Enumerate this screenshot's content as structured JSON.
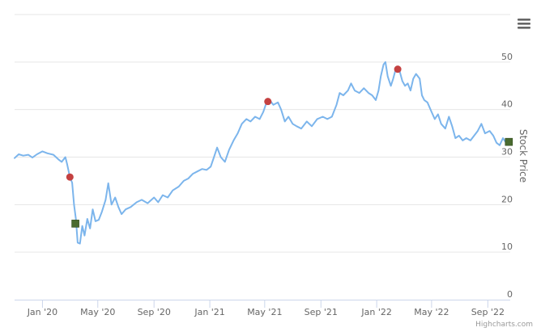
{
  "chart_data": {
    "type": "line",
    "ylabel": "Stock Price",
    "ylim": [
      0,
      60
    ],
    "yticks": [
      0,
      10,
      20,
      30,
      40,
      50
    ],
    "xlim": [
      "2019-11-01",
      "2022-10-20"
    ],
    "xticks": [
      {
        "date": "2020-01-01",
        "label": "Jan '20"
      },
      {
        "date": "2020-05-01",
        "label": "May '20"
      },
      {
        "date": "2020-09-01",
        "label": "Sep '20"
      },
      {
        "date": "2021-01-01",
        "label": "Jan '21"
      },
      {
        "date": "2021-05-01",
        "label": "May '21"
      },
      {
        "date": "2021-09-01",
        "label": "Sep '21"
      },
      {
        "date": "2022-01-01",
        "label": "Jan '22"
      },
      {
        "date": "2022-05-01",
        "label": "May '22"
      },
      {
        "date": "2022-09-01",
        "label": "Sep '22"
      }
    ],
    "grid": true,
    "series": [
      {
        "color": "#7cb5ec",
        "points": [
          [
            "2019-11-01",
            29.8
          ],
          [
            "2019-11-10",
            30.6
          ],
          [
            "2019-11-20",
            30.3
          ],
          [
            "2019-12-01",
            30.5
          ],
          [
            "2019-12-10",
            29.9
          ],
          [
            "2019-12-20",
            30.6
          ],
          [
            "2020-01-01",
            31.2
          ],
          [
            "2020-01-12",
            30.8
          ],
          [
            "2020-01-25",
            30.5
          ],
          [
            "2020-02-05",
            29.5
          ],
          [
            "2020-02-12",
            29.0
          ],
          [
            "2020-02-20",
            30.0
          ],
          [
            "2020-02-24",
            28.5
          ],
          [
            "2020-03-01",
            25.8
          ],
          [
            "2020-03-06",
            24.6
          ],
          [
            "2020-03-10",
            20.0
          ],
          [
            "2020-03-14",
            17.0
          ],
          [
            "2020-03-18",
            12.0
          ],
          [
            "2020-03-23",
            11.8
          ],
          [
            "2020-03-28",
            15.5
          ],
          [
            "2020-04-02",
            13.5
          ],
          [
            "2020-04-08",
            17.0
          ],
          [
            "2020-04-14",
            15.0
          ],
          [
            "2020-04-20",
            19.0
          ],
          [
            "2020-04-26",
            16.5
          ],
          [
            "2020-05-03",
            16.8
          ],
          [
            "2020-05-10",
            18.5
          ],
          [
            "2020-05-18",
            21.0
          ],
          [
            "2020-05-24",
            24.5
          ],
          [
            "2020-05-31",
            20.0
          ],
          [
            "2020-06-08",
            21.5
          ],
          [
            "2020-06-15",
            19.5
          ],
          [
            "2020-06-22",
            18.0
          ],
          [
            "2020-07-01",
            19.0
          ],
          [
            "2020-07-12",
            19.5
          ],
          [
            "2020-07-25",
            20.5
          ],
          [
            "2020-08-05",
            21.0
          ],
          [
            "2020-08-18",
            20.3
          ],
          [
            "2020-09-01",
            21.5
          ],
          [
            "2020-09-10",
            20.5
          ],
          [
            "2020-09-20",
            22.0
          ],
          [
            "2020-10-01",
            21.5
          ],
          [
            "2020-10-12",
            23.0
          ],
          [
            "2020-10-25",
            23.8
          ],
          [
            "2020-11-05",
            25.0
          ],
          [
            "2020-11-15",
            25.5
          ],
          [
            "2020-11-25",
            26.5
          ],
          [
            "2020-12-05",
            27.0
          ],
          [
            "2020-12-15",
            27.5
          ],
          [
            "2020-12-25",
            27.3
          ],
          [
            "2021-01-03",
            28.0
          ],
          [
            "2021-01-10",
            30.0
          ],
          [
            "2021-01-17",
            32.0
          ],
          [
            "2021-01-25",
            30.0
          ],
          [
            "2021-02-03",
            29.0
          ],
          [
            "2021-02-12",
            31.5
          ],
          [
            "2021-02-22",
            33.5
          ],
          [
            "2021-03-03",
            35.0
          ],
          [
            "2021-03-12",
            37.0
          ],
          [
            "2021-03-22",
            38.0
          ],
          [
            "2021-03-31",
            37.5
          ],
          [
            "2021-04-10",
            38.5
          ],
          [
            "2021-04-20",
            38.0
          ],
          [
            "2021-04-28",
            39.5
          ],
          [
            "2021-05-05",
            41.5
          ],
          [
            "2021-05-12",
            42.0
          ],
          [
            "2021-05-20",
            41.0
          ],
          [
            "2021-05-30",
            41.5
          ],
          [
            "2021-06-06",
            40.0
          ],
          [
            "2021-06-14",
            37.5
          ],
          [
            "2021-06-22",
            38.5
          ],
          [
            "2021-07-01",
            37.0
          ],
          [
            "2021-07-10",
            36.5
          ],
          [
            "2021-07-20",
            36.0
          ],
          [
            "2021-08-01",
            37.5
          ],
          [
            "2021-08-12",
            36.5
          ],
          [
            "2021-08-24",
            38.0
          ],
          [
            "2021-09-05",
            38.5
          ],
          [
            "2021-09-15",
            38.0
          ],
          [
            "2021-09-25",
            38.5
          ],
          [
            "2021-10-05",
            41.0
          ],
          [
            "2021-10-12",
            43.5
          ],
          [
            "2021-10-20",
            43.0
          ],
          [
            "2021-10-30",
            44.0
          ],
          [
            "2021-11-06",
            45.5
          ],
          [
            "2021-11-14",
            44.0
          ],
          [
            "2021-11-24",
            43.5
          ],
          [
            "2021-12-04",
            44.5
          ],
          [
            "2021-12-14",
            43.5
          ],
          [
            "2021-12-22",
            43.0
          ],
          [
            "2021-12-30",
            42.0
          ],
          [
            "2022-01-05",
            44.0
          ],
          [
            "2022-01-10",
            47.0
          ],
          [
            "2022-01-16",
            49.5
          ],
          [
            "2022-01-20",
            50.0
          ],
          [
            "2022-01-25",
            47.0
          ],
          [
            "2022-02-01",
            45.0
          ],
          [
            "2022-02-06",
            46.5
          ],
          [
            "2022-02-13",
            49.0
          ],
          [
            "2022-02-19",
            48.5
          ],
          [
            "2022-02-26",
            46.0
          ],
          [
            "2022-03-04",
            45.0
          ],
          [
            "2022-03-10",
            45.5
          ],
          [
            "2022-03-16",
            44.0
          ],
          [
            "2022-03-22",
            46.5
          ],
          [
            "2022-03-28",
            47.5
          ],
          [
            "2022-04-05",
            46.5
          ],
          [
            "2022-04-10",
            43.0
          ],
          [
            "2022-04-15",
            42.0
          ],
          [
            "2022-04-22",
            41.5
          ],
          [
            "2022-05-01",
            39.5
          ],
          [
            "2022-05-08",
            38.0
          ],
          [
            "2022-05-15",
            39.0
          ],
          [
            "2022-05-22",
            37.0
          ],
          [
            "2022-05-31",
            36.0
          ],
          [
            "2022-06-08",
            38.5
          ],
          [
            "2022-06-15",
            36.5
          ],
          [
            "2022-06-22",
            34.0
          ],
          [
            "2022-06-30",
            34.5
          ],
          [
            "2022-07-08",
            33.5
          ],
          [
            "2022-07-16",
            34.0
          ],
          [
            "2022-07-25",
            33.5
          ],
          [
            "2022-08-02",
            34.5
          ],
          [
            "2022-08-10",
            35.5
          ],
          [
            "2022-08-18",
            37.0
          ],
          [
            "2022-08-26",
            35.0
          ],
          [
            "2022-09-05",
            35.5
          ],
          [
            "2022-09-13",
            34.5
          ],
          [
            "2022-09-20",
            33.0
          ],
          [
            "2022-09-27",
            32.5
          ],
          [
            "2022-10-04",
            34.0
          ],
          [
            "2022-10-11",
            33.0
          ],
          [
            "2022-10-17",
            33.0
          ]
        ]
      }
    ],
    "markers": [
      {
        "date": "2020-03-01",
        "value": 25.8,
        "shape": "circle",
        "color": "#c44141"
      },
      {
        "date": "2020-03-13",
        "value": 16.0,
        "shape": "square",
        "color": "#4a6b2f"
      },
      {
        "date": "2021-05-08",
        "value": 41.7,
        "shape": "circle",
        "color": "#c44141"
      },
      {
        "date": "2022-02-16",
        "value": 48.5,
        "shape": "circle",
        "color": "#c44141"
      },
      {
        "date": "2022-10-17",
        "value": 33.2,
        "shape": "square",
        "color": "#4a6b2f"
      }
    ]
  },
  "credits": "Highcharts.com",
  "menu": {
    "icon": "hamburger-menu-icon"
  }
}
